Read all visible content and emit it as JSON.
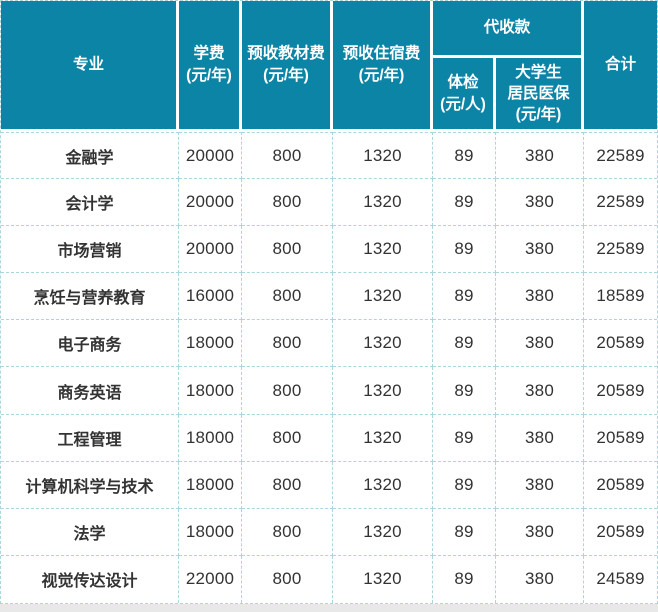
{
  "table": {
    "header": {
      "major": {
        "lines": [
          "专业"
        ]
      },
      "tuition": {
        "lines": [
          "学费",
          "(元/年)"
        ]
      },
      "textbook": {
        "lines": [
          "预收教材费",
          "(元/年)"
        ]
      },
      "accommodation": {
        "lines": [
          "预收住宿费",
          "(元/年)"
        ]
      },
      "collection": {
        "lines": [
          "代收款"
        ]
      },
      "physical": {
        "lines": [
          "体检",
          "(元/人)"
        ]
      },
      "insurance": {
        "lines": [
          "大学生",
          "居民医保",
          "(元/年)"
        ]
      },
      "total": {
        "lines": [
          "合计"
        ]
      }
    },
    "rows": [
      {
        "major": "金融学",
        "tuition": "20000",
        "textbook": "800",
        "accommodation": "1320",
        "physical": "89",
        "insurance": "380",
        "total": "22589"
      },
      {
        "major": "会计学",
        "tuition": "20000",
        "textbook": "800",
        "accommodation": "1320",
        "physical": "89",
        "insurance": "380",
        "total": "22589"
      },
      {
        "major": "市场营销",
        "tuition": "20000",
        "textbook": "800",
        "accommodation": "1320",
        "physical": "89",
        "insurance": "380",
        "total": "22589"
      },
      {
        "major": "烹饪与营养教育",
        "tuition": "16000",
        "textbook": "800",
        "accommodation": "1320",
        "physical": "89",
        "insurance": "380",
        "total": "18589"
      },
      {
        "major": "电子商务",
        "tuition": "18000",
        "textbook": "800",
        "accommodation": "1320",
        "physical": "89",
        "insurance": "380",
        "total": "20589"
      },
      {
        "major": "商务英语",
        "tuition": "18000",
        "textbook": "800",
        "accommodation": "1320",
        "physical": "89",
        "insurance": "380",
        "total": "20589"
      },
      {
        "major": "工程管理",
        "tuition": "18000",
        "textbook": "800",
        "accommodation": "1320",
        "physical": "89",
        "insurance": "380",
        "total": "20589"
      },
      {
        "major": "计算机科学与技术",
        "tuition": "18000",
        "textbook": "800",
        "accommodation": "1320",
        "physical": "89",
        "insurance": "380",
        "total": "20589"
      },
      {
        "major": "法学",
        "tuition": "18000",
        "textbook": "800",
        "accommodation": "1320",
        "physical": "89",
        "insurance": "380",
        "total": "20589"
      },
      {
        "major": "视觉传达设计",
        "tuition": "22000",
        "textbook": "800",
        "accommodation": "1320",
        "physical": "89",
        "insurance": "380",
        "total": "24589"
      }
    ]
  },
  "colors": {
    "header_bg": "#0c84a6",
    "header_text": "#ffffff",
    "border": "#abd6dd",
    "body_text": "#333333",
    "bottom_strip": "#e8e8e8"
  }
}
